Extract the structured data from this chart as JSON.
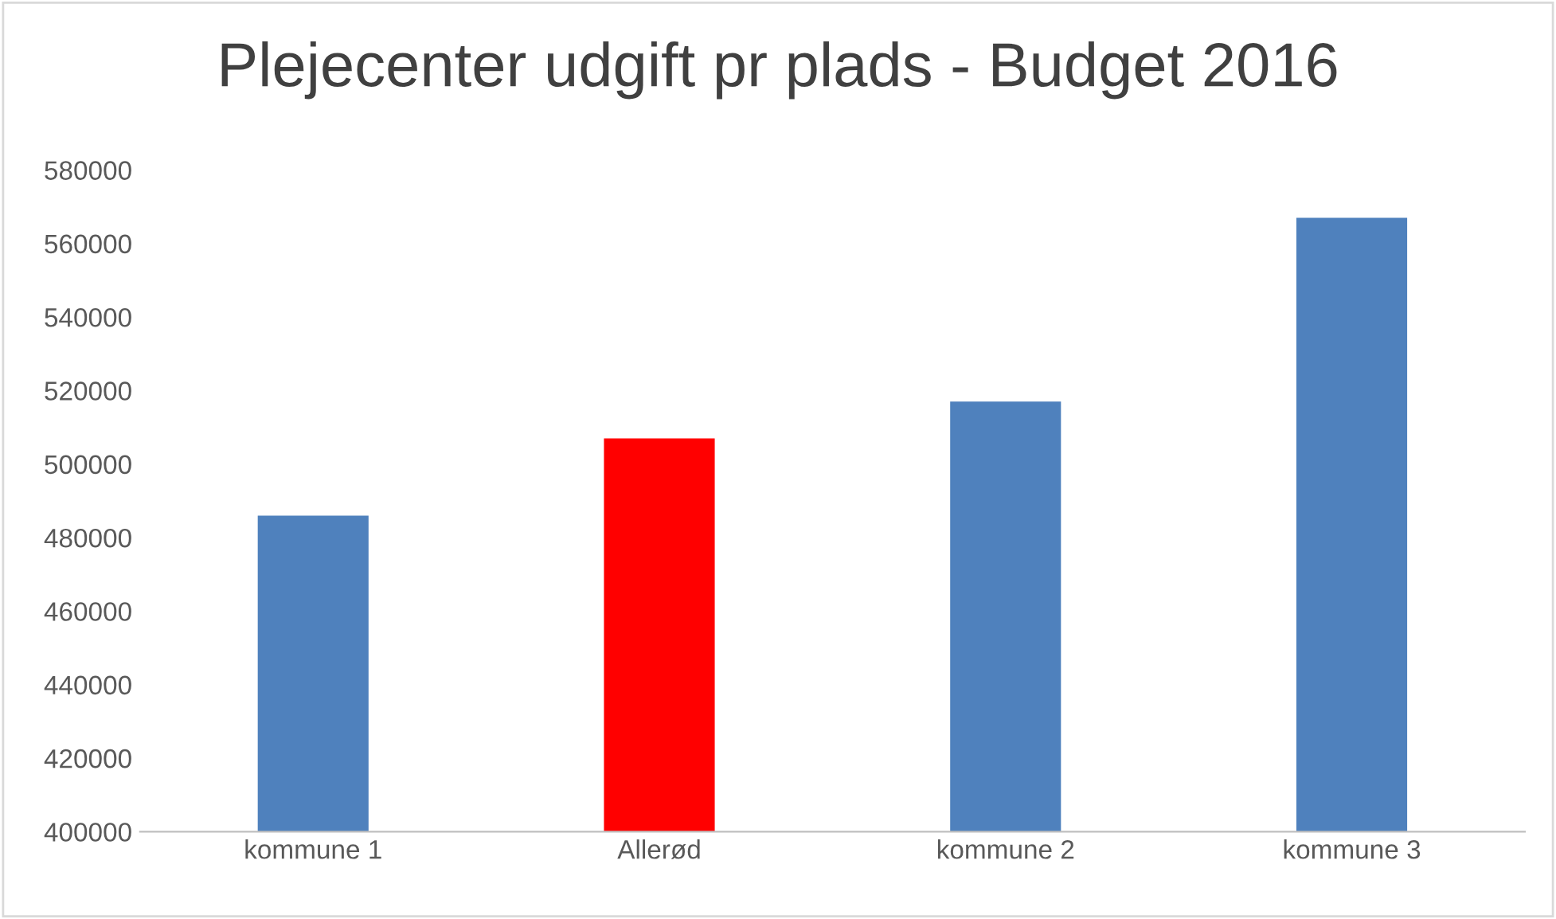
{
  "chart_data": {
    "type": "bar",
    "title": "Plejecenter udgift pr plads - Budget 2016",
    "categories": [
      "kommune 1",
      "Allerød",
      "kommune 2",
      "kommune 3"
    ],
    "values": [
      486000,
      507000,
      517000,
      567000
    ],
    "colors": [
      "#4f81bd",
      "#ff0000",
      "#4f81bd",
      "#4f81bd"
    ],
    "ylim": [
      400000,
      580000
    ],
    "yticks": [
      400000,
      420000,
      440000,
      460000,
      480000,
      500000,
      520000,
      540000,
      560000,
      580000
    ],
    "grid": false,
    "legend": false
  }
}
